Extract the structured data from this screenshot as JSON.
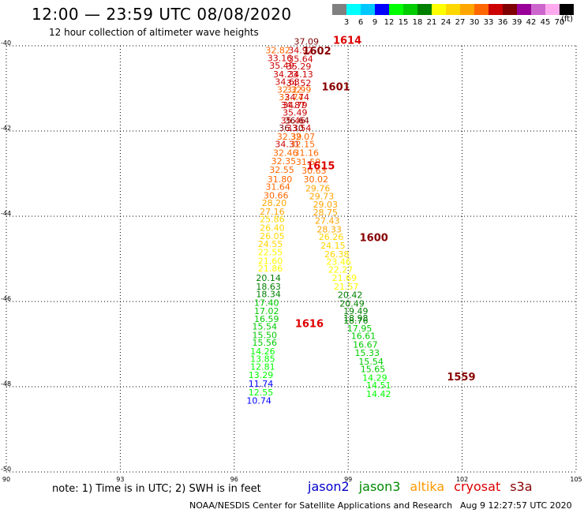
{
  "header": {
    "title": "12:00 — 23:59 UTC 08/08/2020",
    "subtitle": "12 hour collection of altimeter wave heights"
  },
  "colorbar": {
    "labels": [
      "3",
      "6",
      "9",
      "12",
      "15",
      "18",
      "21",
      "24",
      "27",
      "30",
      "33",
      "36",
      "39",
      "42",
      "45",
      "70"
    ],
    "colors": [
      "#808080",
      "#00ffff",
      "#00c8ff",
      "#0000ff",
      "#00ff00",
      "#00cc00",
      "#008000",
      "#ffff00",
      "#ffd700",
      "#ffa500",
      "#ff6600",
      "#cc0000",
      "#800000",
      "#990099",
      "#cc66cc",
      "#ffaaee",
      "#000000"
    ],
    "units": "(ft)"
  },
  "note": "note: 1) Time is in UTC; 2) SWH is in feet",
  "legend": [
    {
      "name": "jason2",
      "color": "#0000cc"
    },
    {
      "name": "jason3",
      "color": "#008800"
    },
    {
      "name": "altika",
      "color": "#ff9900"
    },
    {
      "name": "cryosat",
      "color": "#dd0000"
    },
    {
      "name": "s3a",
      "color": "#880000"
    }
  ],
  "footer": {
    "source": "NOAA/NESDIS Center for Satellite Applications and Research",
    "timestamp": "Aug  9 12:27:57 UTC 2020"
  },
  "chart_data": {
    "type": "scatter",
    "xlim": [
      90,
      105
    ],
    "ylim": [
      -50,
      -40
    ],
    "xticks": [
      "90",
      "93",
      "96",
      "99",
      "102",
      "105"
    ],
    "yticks": [
      "-50",
      "-48",
      "-46",
      "-44",
      "-42",
      "-40"
    ],
    "grid": true,
    "times": [
      {
        "label": "1614",
        "x": 98.6,
        "y": -39.95,
        "color": "#dd0000"
      },
      {
        "label": "1602",
        "x": 97.8,
        "y": -40.2,
        "color": "#880000"
      },
      {
        "label": "1601",
        "x": 98.3,
        "y": -41.05,
        "color": "#880000"
      },
      {
        "label": "1615",
        "x": 97.9,
        "y": -42.9,
        "color": "#dd0000"
      },
      {
        "label": "1600",
        "x": 99.3,
        "y": -44.58,
        "color": "#880000"
      },
      {
        "label": "1616",
        "x": 97.6,
        "y": -46.6,
        "color": "#dd0000"
      },
      {
        "label": "1559",
        "x": 101.6,
        "y": -47.85,
        "color": "#880000"
      }
    ],
    "points": [
      {
        "v": "37.09",
        "x": 97.9,
        "y": -39.97
      },
      {
        "v": "32.82",
        "x": 97.15,
        "y": -40.18
      },
      {
        "v": "34.92",
        "x": 97.75,
        "y": -40.18
      },
      {
        "v": "33.16",
        "x": 97.2,
        "y": -40.36
      },
      {
        "v": "35.64",
        "x": 97.75,
        "y": -40.38
      },
      {
        "v": "35.49",
        "x": 97.25,
        "y": -40.54
      },
      {
        "v": "35.29",
        "x": 97.7,
        "y": -40.56
      },
      {
        "v": "34.23",
        "x": 97.35,
        "y": -40.74
      },
      {
        "v": "34.13",
        "x": 97.75,
        "y": -40.74
      },
      {
        "v": "34.63",
        "x": 97.4,
        "y": -40.92
      },
      {
        "v": "34.52",
        "x": 97.7,
        "y": -40.94
      },
      {
        "v": "32.32",
        "x": 97.45,
        "y": -41.1
      },
      {
        "v": "32.99",
        "x": 97.7,
        "y": -41.1
      },
      {
        "v": "32.74",
        "x": 97.5,
        "y": -41.28
      },
      {
        "v": "34.74",
        "x": 97.65,
        "y": -41.28
      },
      {
        "v": "34.87",
        "x": 97.55,
        "y": -41.46
      },
      {
        "v": "34.79",
        "x": 97.6,
        "y": -41.46
      },
      {
        "v": "35.49",
        "x": 97.6,
        "y": -41.64
      },
      {
        "v": "35.46",
        "x": 97.55,
        "y": -41.82
      },
      {
        "v": "36.64",
        "x": 97.65,
        "y": -41.82
      },
      {
        "v": "36.30",
        "x": 97.5,
        "y": -42.0
      },
      {
        "v": "33.54",
        "x": 97.7,
        "y": -42.0
      },
      {
        "v": "32.39",
        "x": 97.45,
        "y": -42.2
      },
      {
        "v": "32.07",
        "x": 97.8,
        "y": -42.2
      },
      {
        "v": "34.31",
        "x": 97.4,
        "y": -42.38
      },
      {
        "v": "32.15",
        "x": 97.8,
        "y": -42.38
      },
      {
        "v": "32.46",
        "x": 97.35,
        "y": -42.58
      },
      {
        "v": "31.16",
        "x": 97.9,
        "y": -42.58
      },
      {
        "v": "32.35",
        "x": 97.3,
        "y": -42.78
      },
      {
        "v": "31.59",
        "x": 97.95,
        "y": -42.8
      },
      {
        "v": "32.55",
        "x": 97.25,
        "y": -42.98
      },
      {
        "v": "30.63",
        "x": 98.1,
        "y": -43.0
      },
      {
        "v": "31.80",
        "x": 97.2,
        "y": -43.2
      },
      {
        "v": "30.02",
        "x": 98.15,
        "y": -43.2
      },
      {
        "v": "31.64",
        "x": 97.15,
        "y": -43.38
      },
      {
        "v": "29.76",
        "x": 98.2,
        "y": -43.42
      },
      {
        "v": "30.66",
        "x": 97.1,
        "y": -43.58
      },
      {
        "v": "29.73",
        "x": 98.3,
        "y": -43.6
      },
      {
        "v": "28.20",
        "x": 97.05,
        "y": -43.76
      },
      {
        "v": "29.03",
        "x": 98.4,
        "y": -43.8
      },
      {
        "v": "27.16",
        "x": 97.0,
        "y": -43.96
      },
      {
        "v": "28.75",
        "x": 98.4,
        "y": -43.98
      },
      {
        "v": "25.86",
        "x": 97.0,
        "y": -44.14
      },
      {
        "v": "27.43",
        "x": 98.45,
        "y": -44.18
      },
      {
        "v": "26.40",
        "x": 97.0,
        "y": -44.34
      },
      {
        "v": "28.33",
        "x": 98.5,
        "y": -44.38
      },
      {
        "v": "26.05",
        "x": 97.0,
        "y": -44.54
      },
      {
        "v": "26.26",
        "x": 98.55,
        "y": -44.56
      },
      {
        "v": "24.55",
        "x": 96.95,
        "y": -44.72
      },
      {
        "v": "24.15",
        "x": 98.6,
        "y": -44.76
      },
      {
        "v": "22.55",
        "x": 96.95,
        "y": -44.92
      },
      {
        "v": "26.38",
        "x": 98.7,
        "y": -44.96
      },
      {
        "v": "21.60",
        "x": 96.95,
        "y": -45.12
      },
      {
        "v": "23.46",
        "x": 98.75,
        "y": -45.14
      },
      {
        "v": "21.86",
        "x": 96.95,
        "y": -45.3
      },
      {
        "v": "22.27",
        "x": 98.8,
        "y": -45.32
      },
      {
        "v": "20.14",
        "x": 96.9,
        "y": -45.52
      },
      {
        "v": "21.69",
        "x": 98.9,
        "y": -45.52
      },
      {
        "v": "18.63",
        "x": 96.9,
        "y": -45.72
      },
      {
        "v": "21.57",
        "x": 98.95,
        "y": -45.72
      },
      {
        "v": "18.34",
        "x": 96.9,
        "y": -45.9
      },
      {
        "v": "20.42",
        "x": 99.05,
        "y": -45.92
      },
      {
        "v": "17.40",
        "x": 96.85,
        "y": -46.1
      },
      {
        "v": "20.49",
        "x": 99.1,
        "y": -46.12
      },
      {
        "v": "17.02",
        "x": 96.85,
        "y": -46.3
      },
      {
        "v": "19.49",
        "x": 99.2,
        "y": -46.3
      },
      {
        "v": "16.59",
        "x": 96.85,
        "y": -46.48
      },
      {
        "v": "18.98",
        "x": 99.2,
        "y": -46.46
      },
      {
        "v": "18.76",
        "x": 99.2,
        "y": -46.52
      },
      {
        "v": "15.54",
        "x": 96.8,
        "y": -46.66
      },
      {
        "v": "17.95",
        "x": 99.3,
        "y": -46.7
      },
      {
        "v": "15.50",
        "x": 96.8,
        "y": -46.86
      },
      {
        "v": "16.61",
        "x": 99.4,
        "y": -46.88
      },
      {
        "v": "15.56",
        "x": 96.8,
        "y": -47.04
      },
      {
        "v": "16.67",
        "x": 99.45,
        "y": -47.08
      },
      {
        "v": "14.26",
        "x": 96.75,
        "y": -47.24
      },
      {
        "v": "15.33",
        "x": 99.5,
        "y": -47.28
      },
      {
        "v": "13.85",
        "x": 96.75,
        "y": -47.42
      },
      {
        "v": "15.54",
        "x": 99.6,
        "y": -47.48
      },
      {
        "v": "12.81",
        "x": 96.75,
        "y": -47.6
      },
      {
        "v": "15.65",
        "x": 99.65,
        "y": -47.66
      },
      {
        "v": "13.29",
        "x": 96.7,
        "y": -47.8
      },
      {
        "v": "14.29",
        "x": 99.7,
        "y": -47.86
      },
      {
        "v": "11.74",
        "x": 96.7,
        "y": -48.0
      },
      {
        "v": "14.51",
        "x": 99.8,
        "y": -48.04
      },
      {
        "v": "12.55",
        "x": 96.7,
        "y": -48.2
      },
      {
        "v": "14.42",
        "x": 99.8,
        "y": -48.24
      },
      {
        "v": "10.74",
        "x": 96.65,
        "y": -48.4
      }
    ]
  }
}
